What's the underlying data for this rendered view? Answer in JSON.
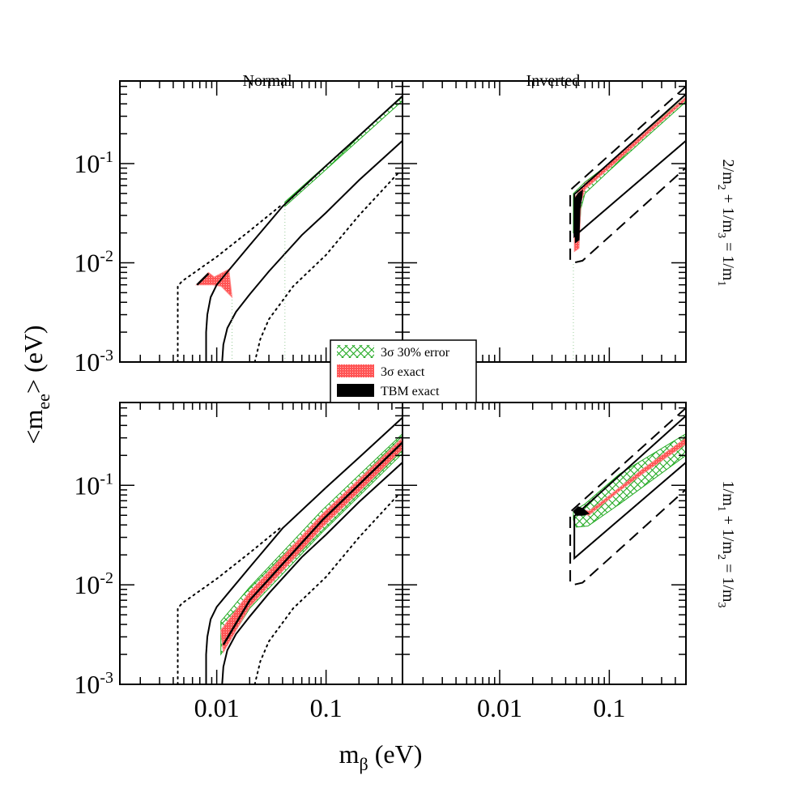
{
  "chart_data": {
    "type": "line",
    "layout": "2x2 panels, log-log",
    "xlabel": {
      "main": "m",
      "sub": "β",
      "rest": " (eV)"
    },
    "ylabel": {
      "main": "<m",
      "sub": "ee",
      "rest": "> (eV)"
    },
    "xlim": [
      0.0013,
      0.5
    ],
    "ylim": [
      0.001,
      0.68
    ],
    "x_scale": "log",
    "y_scale": "log",
    "x_tick_labels": [
      {
        "value": 0.01,
        "label": "0.01"
      },
      {
        "value": 0.1,
        "label": "0.1"
      }
    ],
    "y_tick_labels": [
      {
        "value": 0.1,
        "base": "10",
        "exp": "-1"
      },
      {
        "value": 0.01,
        "base": "10",
        "exp": "-2"
      },
      {
        "value": 0.001,
        "base": "10",
        "exp": "-3"
      }
    ],
    "column_titles": [
      "Normal",
      "Inverted"
    ],
    "row_titles": [
      {
        "parts": [
          [
            "2/m",
            ""
          ],
          [
            "2",
            "sub"
          ],
          [
            " + 1/m",
            ""
          ],
          [
            "3",
            "sub"
          ],
          [
            " = 1/m",
            ""
          ],
          [
            "1",
            "sub"
          ]
        ]
      },
      {
        "parts": [
          [
            "1/m",
            ""
          ],
          [
            "1",
            "sub"
          ],
          [
            " + 1/m",
            ""
          ],
          [
            "2",
            "sub"
          ],
          [
            " = 1/m",
            ""
          ],
          [
            "3",
            "sub"
          ]
        ]
      }
    ],
    "legend": {
      "placement": "center",
      "entries": [
        {
          "label": "3σ 30% error",
          "style": "green-crosshatch"
        },
        {
          "label": "3σ exact",
          "style": "red-dense"
        },
        {
          "label": "TBM exact",
          "style": "black"
        }
      ]
    },
    "colors": {
      "green": "#22aa22",
      "red": "#ff5555",
      "black": "#000000"
    },
    "panels": [
      {
        "row": 0,
        "col": 0,
        "lines": [
          {
            "style": "solid",
            "points": [
              [
                0.008,
                0.001
              ],
              [
                0.008,
                0.002
              ],
              [
                0.0082,
                0.003
              ],
              [
                0.0088,
                0.0045
              ],
              [
                0.01,
                0.006
              ],
              [
                0.013,
                0.0085
              ],
              [
                0.02,
                0.015
              ],
              [
                0.04,
                0.037
              ],
              [
                0.1,
                0.095
              ],
              [
                0.2,
                0.19
              ],
              [
                0.5,
                0.48
              ]
            ]
          },
          {
            "style": "solid",
            "points": [
              [
                0.0112,
                0.001
              ],
              [
                0.0115,
                0.0015
              ],
              [
                0.0125,
                0.0022
              ],
              [
                0.015,
                0.0032
              ],
              [
                0.02,
                0.0048
              ],
              [
                0.03,
                0.0082
              ],
              [
                0.06,
                0.019
              ],
              [
                0.1,
                0.032
              ],
              [
                0.2,
                0.068
              ],
              [
                0.5,
                0.17
              ]
            ]
          },
          {
            "style": "dotted",
            "points": [
              [
                0.0044,
                0.001
              ],
              [
                0.0044,
                0.0058
              ],
              [
                0.0048,
                0.0065
              ],
              [
                0.01,
                0.0115
              ],
              [
                0.02,
                0.021
              ],
              [
                0.04,
                0.039
              ]
            ]
          },
          {
            "style": "dotted",
            "points": [
              [
                0.0223,
                0.001
              ],
              [
                0.025,
                0.0017
              ],
              [
                0.03,
                0.0027
              ],
              [
                0.05,
                0.0058
              ],
              [
                0.1,
                0.012
              ],
              [
                0.2,
                0.03
              ],
              [
                0.47,
                0.083
              ]
            ]
          },
          {
            "style": "guide",
            "points": [
              [
                0.042,
                0.001
              ],
              [
                0.042,
                0.038
              ]
            ]
          },
          {
            "style": "guide",
            "points": [
              [
                0.0138,
                0.001
              ],
              [
                0.0138,
                0.0045
              ]
            ]
          }
        ],
        "regions": [
          {
            "style": "green",
            "points": [
              [
                0.042,
                0.037
              ],
              [
                0.042,
                0.041
              ],
              [
                0.5,
                0.47
              ],
              [
                0.5,
                0.43
              ]
            ]
          },
          {
            "style": "red",
            "points": [
              [
                0.0065,
                0.006
              ],
              [
                0.0084,
                0.008
              ],
              [
                0.0095,
                0.0072
              ],
              [
                0.0129,
                0.0086
              ],
              [
                0.0138,
                0.0045
              ],
              [
                0.011,
                0.0058
              ],
              [
                0.0092,
                0.006
              ]
            ]
          },
          {
            "style": "blackline",
            "points": [
              [
                0.0066,
                0.006
              ],
              [
                0.0084,
                0.0078
              ]
            ]
          }
        ]
      },
      {
        "row": 0,
        "col": 1,
        "lines": [
          {
            "style": "dashed",
            "points": [
              [
                0.5,
                0.6
              ],
              [
                0.044,
                0.054
              ],
              [
                0.044,
                0.0105
              ],
              [
                0.047,
                0.01
              ],
              [
                0.057,
                0.0105
              ],
              [
                0.5,
                0.091
              ]
            ]
          },
          {
            "style": "solid",
            "points": [
              [
                0.5,
                0.5
              ],
              [
                0.048,
                0.049
              ],
              [
                0.048,
                0.0185
              ],
              [
                0.5,
                0.17
              ]
            ]
          },
          {
            "style": "guide",
            "points": [
              [
                0.047,
                0.001
              ],
              [
                0.047,
                0.01
              ]
            ]
          }
        ],
        "regions": [
          {
            "style": "green",
            "points": [
              [
                0.047,
                0.02
              ],
              [
                0.047,
                0.05
              ],
              [
                0.06,
                0.065
              ],
              [
                0.1,
                0.1
              ],
              [
                0.2,
                0.2
              ],
              [
                0.5,
                0.47
              ],
              [
                0.5,
                0.42
              ],
              [
                0.2,
                0.17
              ],
              [
                0.1,
                0.085
              ],
              [
                0.06,
                0.05
              ],
              [
                0.055,
                0.035
              ],
              [
                0.053,
                0.018
              ]
            ]
          },
          {
            "style": "red",
            "points": [
              [
                0.048,
                0.013
              ],
              [
                0.048,
                0.045
              ],
              [
                0.06,
                0.063
              ],
              [
                0.1,
                0.1
              ],
              [
                0.5,
                0.47
              ],
              [
                0.5,
                0.44
              ],
              [
                0.1,
                0.09
              ],
              [
                0.06,
                0.055
              ],
              [
                0.055,
                0.04
              ],
              [
                0.053,
                0.014
              ]
            ]
          },
          {
            "style": "black",
            "points": [
              [
                0.049,
                0.016
              ],
              [
                0.049,
                0.045
              ],
              [
                0.052,
                0.05
              ],
              [
                0.057,
                0.054
              ],
              [
                0.056,
                0.045
              ],
              [
                0.054,
                0.035
              ],
              [
                0.053,
                0.017
              ]
            ]
          }
        ]
      },
      {
        "row": 1,
        "col": 0,
        "lines": [
          {
            "style": "solid",
            "points": [
              [
                0.008,
                0.001
              ],
              [
                0.008,
                0.002
              ],
              [
                0.0082,
                0.003
              ],
              [
                0.0088,
                0.0045
              ],
              [
                0.01,
                0.006
              ],
              [
                0.013,
                0.0085
              ],
              [
                0.02,
                0.015
              ],
              [
                0.04,
                0.037
              ],
              [
                0.1,
                0.095
              ],
              [
                0.2,
                0.19
              ],
              [
                0.5,
                0.48
              ]
            ]
          },
          {
            "style": "solid",
            "points": [
              [
                0.0112,
                0.001
              ],
              [
                0.0115,
                0.0015
              ],
              [
                0.0125,
                0.0022
              ],
              [
                0.015,
                0.0032
              ],
              [
                0.02,
                0.0048
              ],
              [
                0.03,
                0.0082
              ],
              [
                0.06,
                0.019
              ],
              [
                0.1,
                0.032
              ],
              [
                0.2,
                0.068
              ],
              [
                0.5,
                0.17
              ]
            ]
          },
          {
            "style": "dotted",
            "points": [
              [
                0.0044,
                0.001
              ],
              [
                0.0044,
                0.0058
              ],
              [
                0.0048,
                0.0065
              ],
              [
                0.01,
                0.0115
              ],
              [
                0.02,
                0.021
              ],
              [
                0.04,
                0.039
              ]
            ]
          },
          {
            "style": "dotted",
            "points": [
              [
                0.0223,
                0.001
              ],
              [
                0.025,
                0.0017
              ],
              [
                0.03,
                0.0027
              ],
              [
                0.05,
                0.0058
              ],
              [
                0.1,
                0.012
              ],
              [
                0.2,
                0.03
              ],
              [
                0.47,
                0.083
              ]
            ]
          }
        ],
        "regions": [
          {
            "style": "green",
            "points": [
              [
                0.0109,
                0.0043
              ],
              [
                0.02,
                0.0095
              ],
              [
                0.093,
                0.057
              ],
              [
                0.5,
                0.33
              ],
              [
                0.5,
                0.21
              ],
              [
                0.093,
                0.034
              ],
              [
                0.02,
                0.0058
              ],
              [
                0.0109,
                0.002
              ]
            ]
          },
          {
            "style": "red",
            "points": [
              [
                0.0109,
                0.0035
              ],
              [
                0.02,
                0.0085
              ],
              [
                0.093,
                0.052
              ],
              [
                0.5,
                0.3
              ],
              [
                0.5,
                0.23
              ],
              [
                0.093,
                0.038
              ],
              [
                0.02,
                0.006
              ],
              [
                0.0115,
                0.0021
              ]
            ]
          },
          {
            "style": "blackline",
            "points": [
              [
                0.0115,
                0.0025
              ],
              [
                0.02,
                0.007
              ],
              [
                0.093,
                0.045
              ],
              [
                0.5,
                0.27
              ]
            ]
          }
        ]
      },
      {
        "row": 1,
        "col": 1,
        "lines": [
          {
            "style": "dashed",
            "points": [
              [
                0.5,
                0.6
              ],
              [
                0.044,
                0.054
              ],
              [
                0.044,
                0.0105
              ],
              [
                0.047,
                0.01
              ],
              [
                0.057,
                0.0105
              ],
              [
                0.5,
                0.091
              ]
            ]
          },
          {
            "style": "solid",
            "points": [
              [
                0.5,
                0.5
              ],
              [
                0.048,
                0.049
              ],
              [
                0.048,
                0.0185
              ],
              [
                0.5,
                0.17
              ]
            ]
          }
        ],
        "regions": [
          {
            "style": "green",
            "points": [
              [
                0.047,
                0.055
              ],
              [
                0.06,
                0.065
              ],
              [
                0.124,
                0.13
              ],
              [
                0.5,
                0.33
              ],
              [
                0.5,
                0.2
              ],
              [
                0.124,
                0.065
              ],
              [
                0.064,
                0.039
              ],
              [
                0.05,
                0.038
              ],
              [
                0.047,
                0.045
              ]
            ]
          },
          {
            "style": "red",
            "points": [
              [
                0.055,
                0.058
              ],
              [
                0.065,
                0.055
              ],
              [
                0.08,
                0.065
              ],
              [
                0.124,
                0.095
              ],
              [
                0.2,
                0.145
              ],
              [
                0.5,
                0.3
              ],
              [
                0.5,
                0.26
              ],
              [
                0.2,
                0.13
              ],
              [
                0.124,
                0.088
              ],
              [
                0.08,
                0.06
              ],
              [
                0.065,
                0.05
              ],
              [
                0.055,
                0.052
              ]
            ]
          },
          {
            "style": "black",
            "points": [
              [
                0.047,
                0.055
              ],
              [
                0.052,
                0.061
              ],
              [
                0.058,
                0.058
              ],
              [
                0.065,
                0.052
              ],
              [
                0.058,
                0.05
              ],
              [
                0.05,
                0.05
              ]
            ]
          }
        ]
      }
    ]
  }
}
